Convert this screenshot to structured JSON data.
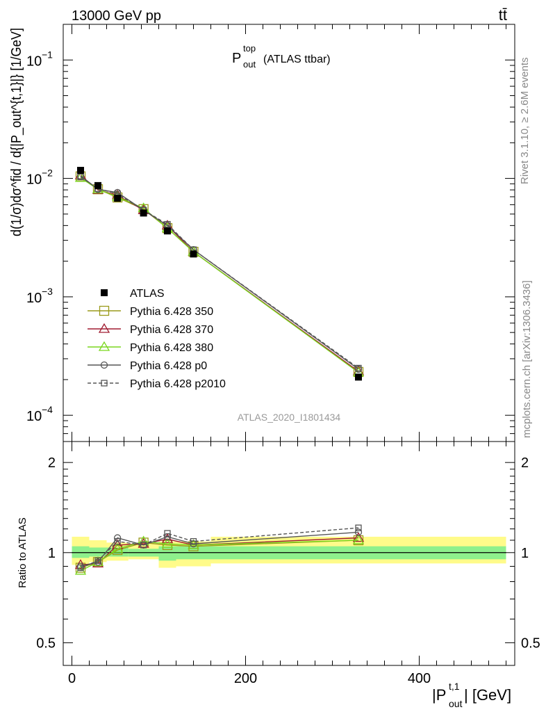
{
  "header": {
    "energy_label": "13000 GeV pp",
    "process_label": "tt̄"
  },
  "side_labels": {
    "rivet": "Rivet 3.1.10, ≥ 2.6M events",
    "mcplots": "mcplots.cern.ch [arXiv:1306.3436]"
  },
  "chart_data": [
    {
      "type": "line",
      "title_main": "P",
      "title_sup": "top",
      "title_sub": "out",
      "title_suffix": "(ATLAS ttbar)",
      "watermark": "ATLAS_2020_I1801434",
      "ylabel": "d(1/σ)dσ^fid / d{|P_out^{t,1}|} [1/GeV]",
      "ylabel_unit": "[1/GeV]",
      "yscale": "log",
      "ylim": [
        6e-05,
        0.2
      ],
      "xlim": [
        -10,
        510
      ],
      "ytick_labels": [
        "10^-1",
        "10^-2",
        "10^-3",
        "10^-4"
      ],
      "x": [
        10,
        30,
        52.5,
        82.5,
        110,
        140,
        330
      ],
      "series": [
        {
          "name": "ATLAS",
          "color": "#000000",
          "marker": "filled-square",
          "dash": "",
          "values": [
            0.0117,
            0.0087,
            0.0068,
            0.0051,
            0.0036,
            0.0023,
            0.00021
          ]
        },
        {
          "name": "Pythia 6.428 350",
          "color": "#9a9a1a",
          "marker": "open-square",
          "dash": "",
          "values": [
            0.0104,
            0.0081,
            0.0069,
            0.0055,
            0.0038,
            0.0024,
            0.000232
          ]
        },
        {
          "name": "Pythia 6.428 370",
          "color": "#a01c30",
          "marker": "open-triangle",
          "dash": "",
          "values": [
            0.0106,
            0.008,
            0.0072,
            0.0054,
            0.004,
            0.0024,
            0.000235
          ]
        },
        {
          "name": "Pythia 6.428 380",
          "color": "#7ad61e",
          "marker": "open-triangle",
          "dash": "",
          "values": [
            0.0101,
            0.0081,
            0.007,
            0.0056,
            0.0038,
            0.0024,
            0.00023
          ]
        },
        {
          "name": "Pythia 6.428 p0",
          "color": "#555555",
          "marker": "open-circle",
          "dash": "",
          "values": [
            0.0105,
            0.0081,
            0.0076,
            0.0054,
            0.004,
            0.0025,
            0.000245
          ]
        },
        {
          "name": "Pythia 6.428 p2010",
          "color": "#555555",
          "marker": "open-square-small",
          "dash": "5,3",
          "values": [
            0.0103,
            0.0082,
            0.0074,
            0.0054,
            0.0041,
            0.0025,
            0.00025
          ]
        }
      ]
    },
    {
      "type": "line",
      "ylabel": "Ratio to ATLAS",
      "xlabel": "|P_out^{t,1}| [GeV]",
      "xlabel_pre": "|P",
      "xlabel_sup": "t,1",
      "xlabel_sub": "out",
      "xlabel_post": "| [GeV]",
      "yscale": "log",
      "ylim": [
        0.42,
        2.35
      ],
      "xlim": [
        -10,
        510
      ],
      "ytick_labels": [
        "0.5",
        "1",
        "2"
      ],
      "xtick_labels": [
        "0",
        "200",
        "400"
      ],
      "band_bins": [
        [
          0,
          20
        ],
        [
          20,
          40
        ],
        [
          40,
          65
        ],
        [
          65,
          100
        ],
        [
          100,
          120
        ],
        [
          120,
          160
        ],
        [
          160,
          500
        ]
      ],
      "band_outer": [
        [
          0.91,
          1.13
        ],
        [
          0.93,
          1.1
        ],
        [
          0.94,
          1.08
        ],
        [
          0.95,
          1.07
        ],
        [
          0.89,
          1.09
        ],
        [
          0.9,
          1.09
        ],
        [
          0.92,
          1.13
        ]
      ],
      "band_inner": [
        [
          0.96,
          1.05
        ],
        [
          0.97,
          1.04
        ],
        [
          0.97,
          1.04
        ],
        [
          0.97,
          1.03
        ],
        [
          0.94,
          1.05
        ],
        [
          0.95,
          1.05
        ],
        [
          0.95,
          1.05
        ]
      ],
      "x": [
        10,
        30,
        52.5,
        82.5,
        110,
        140,
        330
      ],
      "series": [
        {
          "name": "Pythia 6.428 350",
          "values": [
            0.89,
            0.93,
            1.02,
            1.08,
            1.06,
            1.05,
            1.1
          ]
        },
        {
          "name": "Pythia 6.428 370",
          "values": [
            0.91,
            0.92,
            1.06,
            1.07,
            1.11,
            1.06,
            1.12
          ]
        },
        {
          "name": "Pythia 6.428 380",
          "values": [
            0.87,
            0.93,
            1.03,
            1.09,
            1.07,
            1.06,
            1.1
          ]
        },
        {
          "name": "Pythia 6.428 p0",
          "values": [
            0.9,
            0.93,
            1.12,
            1.06,
            1.13,
            1.07,
            1.17
          ]
        },
        {
          "name": "Pythia 6.428 p2010",
          "values": [
            0.89,
            0.94,
            1.09,
            1.06,
            1.16,
            1.09,
            1.21
          ]
        }
      ]
    }
  ]
}
